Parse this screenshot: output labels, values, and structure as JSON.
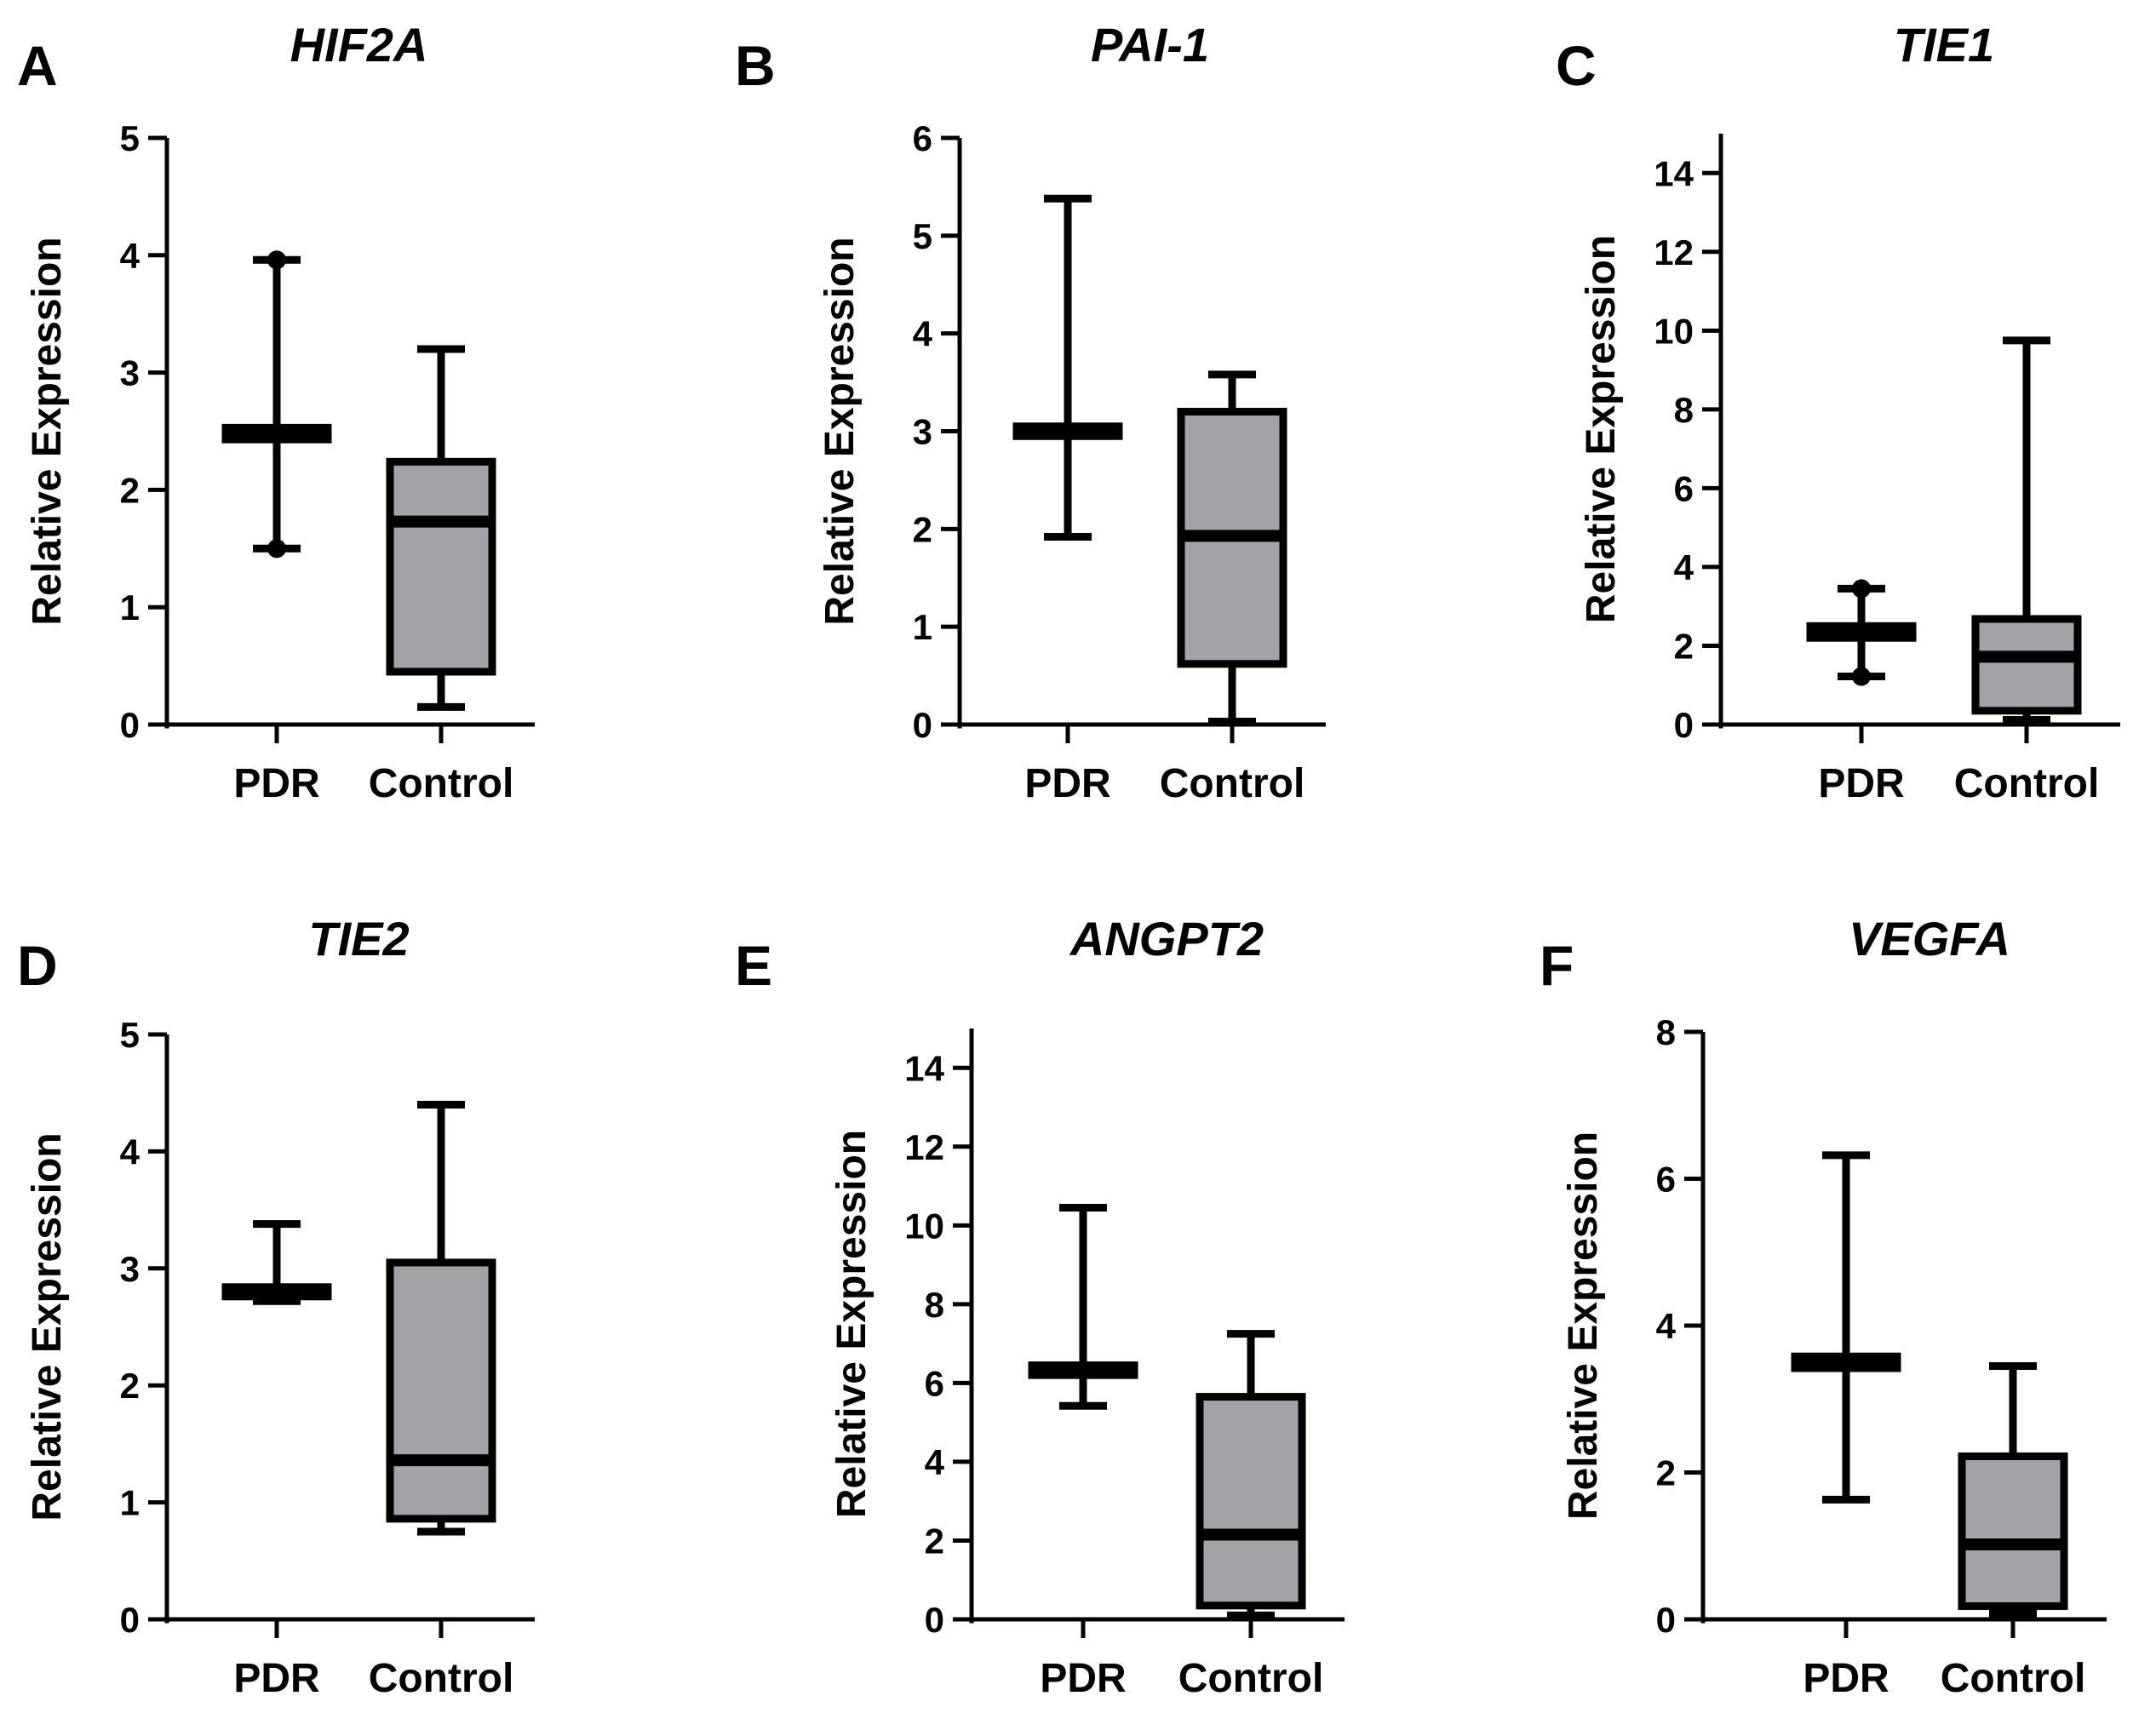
{
  "figure": {
    "y_axis_label": "Relative Expression",
    "group_fill": "#a3a2a7",
    "stroke_color": "#000000"
  },
  "chart_data": [
    {
      "panel": "A",
      "title": "HIF2A",
      "type": "box",
      "ylabel": "Relative Expression",
      "ylim": [
        0,
        5
      ],
      "yticks": [
        "0",
        "1",
        "2",
        "3",
        "4",
        "5"
      ],
      "categories": [
        "PDR",
        "Control"
      ],
      "boxes": [
        {
          "name": "PDR",
          "min": 1.5,
          "q1": 2.43,
          "median": 2.48,
          "q3": 2.53,
          "max": 3.96,
          "whisker_dots": true
        },
        {
          "name": "Control",
          "min": 0.15,
          "q1": 0.45,
          "median": 1.73,
          "q3": 2.24,
          "max": 3.2,
          "whisker_dots": false
        }
      ]
    },
    {
      "panel": "B",
      "title": "PAI-1",
      "type": "box",
      "ylabel": "Relative Expression",
      "ylim": [
        0,
        6
      ],
      "yticks": [
        "0",
        "1",
        "2",
        "3",
        "4",
        "5",
        "6"
      ],
      "categories": [
        "PDR",
        "Control"
      ],
      "boxes": [
        {
          "name": "PDR",
          "min": 1.92,
          "q1": 2.95,
          "median": 3.0,
          "q3": 3.05,
          "max": 5.38,
          "whisker_dots": false
        },
        {
          "name": "Control",
          "min": 0.03,
          "q1": 0.62,
          "median": 1.93,
          "q3": 3.2,
          "max": 3.58,
          "whisker_dots": false
        }
      ]
    },
    {
      "panel": "C",
      "title": "TIE1",
      "type": "box",
      "ylabel": "Relative Expression",
      "ylim": [
        0,
        15
      ],
      "yticks": [
        "0",
        "2",
        "4",
        "6",
        "8",
        "10",
        "12",
        "14"
      ],
      "categories": [
        "PDR",
        "Control"
      ],
      "boxes": [
        {
          "name": "PDR",
          "min": 1.22,
          "q1": 2.2,
          "median": 2.35,
          "q3": 2.5,
          "max": 3.45,
          "whisker_dots": true
        },
        {
          "name": "Control",
          "min": 0.12,
          "q1": 0.35,
          "median": 1.72,
          "q3": 2.68,
          "max": 9.75,
          "whisker_dots": false
        }
      ]
    },
    {
      "panel": "D",
      "title": "TIE2",
      "type": "box",
      "ylabel": "Relative Expression",
      "ylim": [
        0,
        5
      ],
      "yticks": [
        "0",
        "1",
        "2",
        "3",
        "4",
        "5"
      ],
      "categories": [
        "PDR",
        "Control"
      ],
      "boxes": [
        {
          "name": "PDR",
          "min": 2.72,
          "q1": 2.76,
          "median": 2.8,
          "q3": 2.84,
          "max": 3.38,
          "whisker_dots": false
        },
        {
          "name": "Control",
          "min": 0.75,
          "q1": 0.86,
          "median": 1.36,
          "q3": 3.05,
          "max": 4.4,
          "whisker_dots": false
        }
      ]
    },
    {
      "panel": "E",
      "title": "ANGPT2",
      "type": "box",
      "ylabel": "Relative Expression",
      "ylim": [
        0,
        15
      ],
      "yticks": [
        "0",
        "2",
        "4",
        "6",
        "8",
        "10",
        "12",
        "14"
      ],
      "categories": [
        "PDR",
        "Control"
      ],
      "boxes": [
        {
          "name": "PDR",
          "min": 5.42,
          "q1": 6.2,
          "median": 6.3,
          "q3": 6.45,
          "max": 10.45,
          "whisker_dots": false
        },
        {
          "name": "Control",
          "min": 0.1,
          "q1": 0.35,
          "median": 2.15,
          "q3": 5.65,
          "max": 7.25,
          "whisker_dots": false
        }
      ]
    },
    {
      "panel": "F",
      "title": "VEGFA",
      "type": "box",
      "ylabel": "Relative Expression",
      "ylim": [
        0,
        8
      ],
      "yticks": [
        "0",
        "2",
        "4",
        "6",
        "8"
      ],
      "categories": [
        "PDR",
        "Control"
      ],
      "boxes": [
        {
          "name": "PDR",
          "min": 1.63,
          "q1": 3.42,
          "median": 3.5,
          "q3": 3.58,
          "max": 6.32,
          "whisker_dots": false
        },
        {
          "name": "Control",
          "min": 0.08,
          "q1": 0.18,
          "median": 1.02,
          "q3": 2.22,
          "max": 3.45,
          "whisker_dots": false
        }
      ]
    }
  ]
}
